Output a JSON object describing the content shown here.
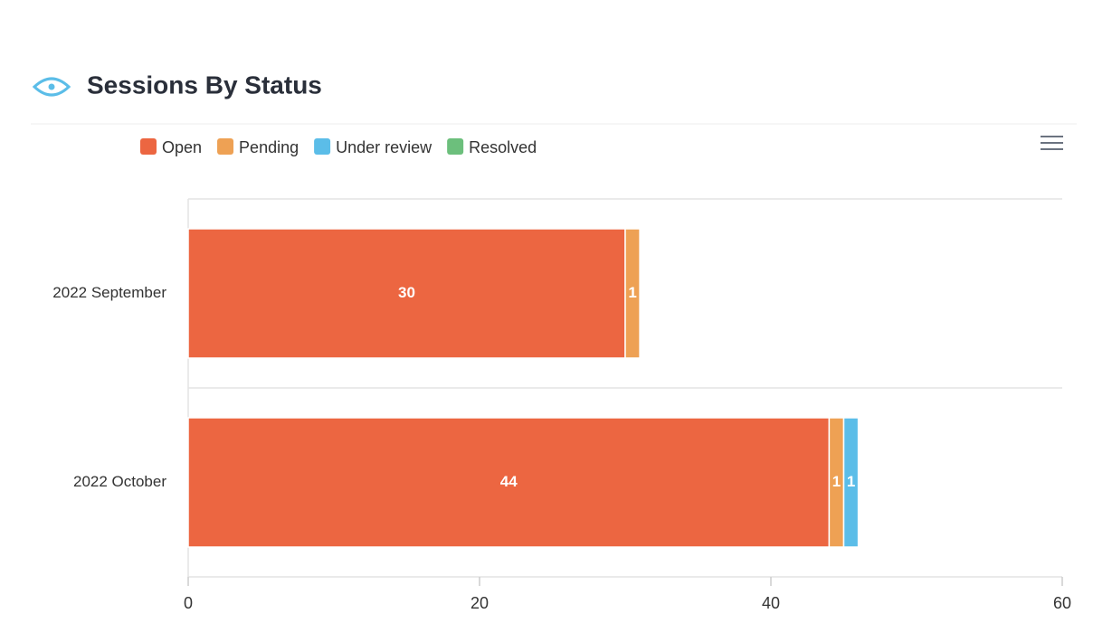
{
  "chart_data": {
    "type": "stacked-barh",
    "title": "Sessions By Status",
    "categories": [
      "2022 September",
      "2022 October"
    ],
    "series": [
      {
        "name": "Open",
        "color": "#ec6641",
        "values": [
          30,
          44
        ]
      },
      {
        "name": "Pending",
        "color": "#eea154",
        "values": [
          1,
          1
        ]
      },
      {
        "name": "Under review",
        "color": "#5bbde8",
        "values": [
          0,
          1
        ]
      },
      {
        "name": "Resolved",
        "color": "#6cbf7c",
        "values": [
          0,
          0
        ]
      }
    ],
    "xlim": [
      0,
      60
    ],
    "xticks": [
      0,
      20,
      40,
      60
    ],
    "legend": "top-left"
  }
}
